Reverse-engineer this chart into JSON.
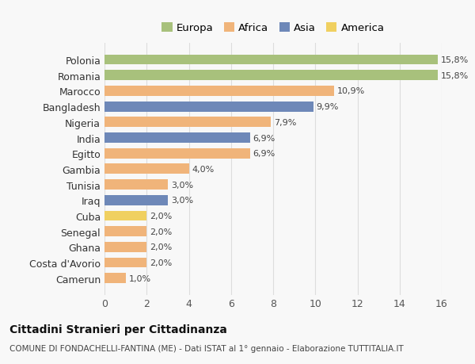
{
  "countries": [
    "Camerun",
    "Costa d'Avorio",
    "Ghana",
    "Senegal",
    "Cuba",
    "Iraq",
    "Tunisia",
    "Gambia",
    "Egitto",
    "India",
    "Nigeria",
    "Bangladesh",
    "Marocco",
    "Romania",
    "Polonia"
  ],
  "values": [
    1.0,
    2.0,
    2.0,
    2.0,
    2.0,
    3.0,
    3.0,
    4.0,
    6.9,
    6.9,
    7.9,
    9.9,
    10.9,
    15.8,
    15.8
  ],
  "labels": [
    "1,0%",
    "2,0%",
    "2,0%",
    "2,0%",
    "2,0%",
    "3,0%",
    "3,0%",
    "4,0%",
    "6,9%",
    "6,9%",
    "7,9%",
    "9,9%",
    "10,9%",
    "15,8%",
    "15,8%"
  ],
  "continents": [
    "Africa",
    "Africa",
    "Africa",
    "Africa",
    "America",
    "Asia",
    "Africa",
    "Africa",
    "Africa",
    "Asia",
    "Africa",
    "Asia",
    "Africa",
    "Europa",
    "Europa"
  ],
  "colors": {
    "Europa": "#a8c17c",
    "Africa": "#f0b47a",
    "Asia": "#6e88b8",
    "America": "#f0d060"
  },
  "legend_order": [
    "Europa",
    "Africa",
    "Asia",
    "America"
  ],
  "xlim": [
    0,
    16
  ],
  "xticks": [
    0,
    2,
    4,
    6,
    8,
    10,
    12,
    14,
    16
  ],
  "title": "Cittadini Stranieri per Cittadinanza",
  "subtitle": "COMUNE DI FONDACHELLI-FANTINA (ME) - Dati ISTAT al 1° gennaio - Elaborazione TUTTITALIA.IT",
  "bg_color": "#f8f8f8",
  "bar_height": 0.65,
  "grid_color": "#dddddd"
}
